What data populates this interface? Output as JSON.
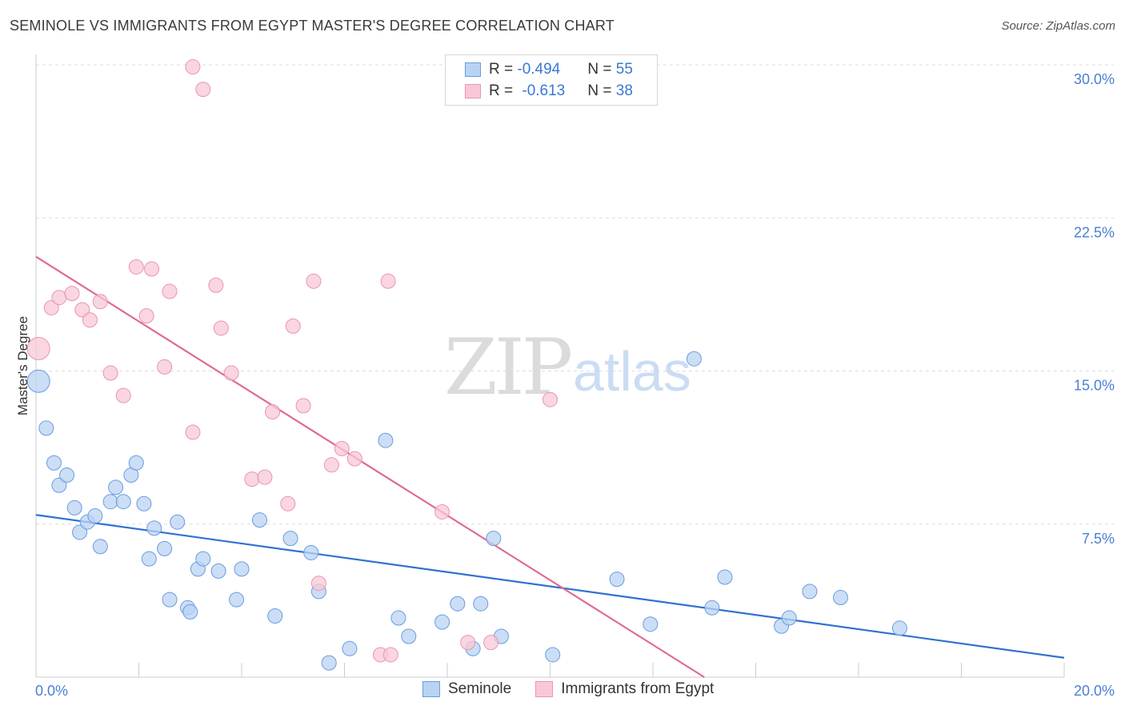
{
  "title": "SEMINOLE VS IMMIGRANTS FROM EGYPT MASTER'S DEGREE CORRELATION CHART",
  "source": "Source: ZipAtlas.com",
  "watermark": {
    "zip": "ZIP",
    "atlas": "atlas"
  },
  "legend_top": {
    "rows": [
      {
        "r_label": "R = ",
        "r_value": "-0.494",
        "n_label": "N = ",
        "n_value": "55"
      },
      {
        "r_label": "R = ",
        "r_value": "-0.613",
        "n_label": "N = ",
        "n_value": "38"
      }
    ]
  },
  "legend_bottom": {
    "seminole": "Seminole",
    "egypt": "Immigrants from Egypt"
  },
  "colors": {
    "seminole_fill": "#b9d3f3",
    "seminole_stroke": "#6a9be0",
    "seminole_line": "#2f72d0",
    "egypt_fill": "#f8c8d6",
    "egypt_stroke": "#e995b0",
    "egypt_line": "#e06a93",
    "tick_text": "#4a7fd4",
    "grid": "#dcdcdc"
  },
  "chart_data": {
    "type": "scatter",
    "xlabel": "",
    "ylabel": "Master's Degree",
    "xlim": [
      0,
      20
    ],
    "ylim": [
      0,
      30
    ],
    "x_tick_labels": [
      "0.0%",
      "20.0%"
    ],
    "y_ticks": [
      7.5,
      15,
      22.5,
      30
    ],
    "y_tick_labels": [
      "7.5%",
      "15.0%",
      "22.5%",
      "30.0%"
    ],
    "grid": "horizontal dashed",
    "series": [
      {
        "name": "Seminole",
        "points": [
          [
            0.05,
            14.5
          ],
          [
            0.2,
            12.2
          ],
          [
            0.35,
            10.5
          ],
          [
            0.45,
            9.4
          ],
          [
            0.6,
            9.9
          ],
          [
            0.75,
            8.3
          ],
          [
            0.85,
            7.1
          ],
          [
            1.0,
            7.6
          ],
          [
            1.15,
            7.9
          ],
          [
            1.25,
            6.4
          ],
          [
            1.45,
            8.6
          ],
          [
            1.55,
            9.3
          ],
          [
            1.7,
            8.6
          ],
          [
            1.85,
            9.9
          ],
          [
            1.95,
            10.5
          ],
          [
            2.1,
            8.5
          ],
          [
            2.2,
            5.8
          ],
          [
            2.3,
            7.3
          ],
          [
            2.5,
            6.3
          ],
          [
            2.6,
            3.8
          ],
          [
            2.75,
            7.6
          ],
          [
            2.95,
            3.4
          ],
          [
            3.0,
            3.2
          ],
          [
            3.15,
            5.3
          ],
          [
            3.25,
            5.8
          ],
          [
            3.55,
            5.2
          ],
          [
            3.9,
            3.8
          ],
          [
            4.0,
            5.3
          ],
          [
            4.35,
            7.7
          ],
          [
            4.65,
            3.0
          ],
          [
            4.95,
            6.8
          ],
          [
            5.35,
            6.1
          ],
          [
            5.5,
            4.2
          ],
          [
            5.7,
            0.7
          ],
          [
            6.1,
            1.4
          ],
          [
            6.8,
            11.6
          ],
          [
            7.05,
            2.9
          ],
          [
            7.25,
            2.0
          ],
          [
            7.9,
            2.7
          ],
          [
            8.2,
            3.6
          ],
          [
            8.5,
            1.4
          ],
          [
            8.65,
            3.6
          ],
          [
            8.9,
            6.8
          ],
          [
            9.05,
            2.0
          ],
          [
            10.05,
            1.1
          ],
          [
            11.3,
            4.8
          ],
          [
            11.95,
            2.6
          ],
          [
            12.8,
            15.6
          ],
          [
            13.15,
            3.4
          ],
          [
            13.4,
            4.9
          ],
          [
            14.5,
            2.5
          ],
          [
            14.65,
            2.9
          ],
          [
            15.05,
            4.2
          ],
          [
            15.65,
            3.9
          ],
          [
            16.8,
            2.4
          ]
        ]
      },
      {
        "name": "Immigrants from Egypt",
        "points": [
          [
            0.05,
            16.1
          ],
          [
            0.3,
            18.1
          ],
          [
            0.45,
            18.6
          ],
          [
            0.7,
            18.8
          ],
          [
            0.9,
            18.0
          ],
          [
            1.05,
            17.5
          ],
          [
            1.25,
            18.4
          ],
          [
            1.45,
            14.9
          ],
          [
            1.7,
            13.8
          ],
          [
            1.95,
            20.1
          ],
          [
            2.15,
            17.7
          ],
          [
            2.25,
            20.0
          ],
          [
            2.5,
            15.2
          ],
          [
            2.6,
            18.9
          ],
          [
            3.05,
            29.9
          ],
          [
            3.05,
            12.0
          ],
          [
            3.25,
            28.8
          ],
          [
            3.5,
            19.2
          ],
          [
            3.6,
            17.1
          ],
          [
            3.8,
            14.9
          ],
          [
            4.2,
            9.7
          ],
          [
            4.45,
            9.8
          ],
          [
            4.6,
            13.0
          ],
          [
            4.9,
            8.5
          ],
          [
            5.0,
            17.2
          ],
          [
            5.2,
            13.3
          ],
          [
            5.4,
            19.4
          ],
          [
            5.75,
            10.4
          ],
          [
            5.95,
            11.2
          ],
          [
            6.2,
            10.7
          ],
          [
            6.85,
            19.4
          ],
          [
            6.7,
            1.1
          ],
          [
            6.9,
            1.1
          ],
          [
            7.9,
            8.1
          ],
          [
            8.4,
            1.7
          ],
          [
            8.85,
            1.7
          ],
          [
            10.0,
            13.6
          ],
          [
            5.5,
            4.6
          ]
        ]
      }
    ],
    "trendlines": [
      {
        "name": "Seminole",
        "from": [
          0,
          7.95
        ],
        "to": [
          20,
          0.95
        ]
      },
      {
        "name": "Immigrants from Egypt",
        "from": [
          0,
          20.6
        ],
        "to": [
          13.0,
          0
        ]
      }
    ]
  }
}
